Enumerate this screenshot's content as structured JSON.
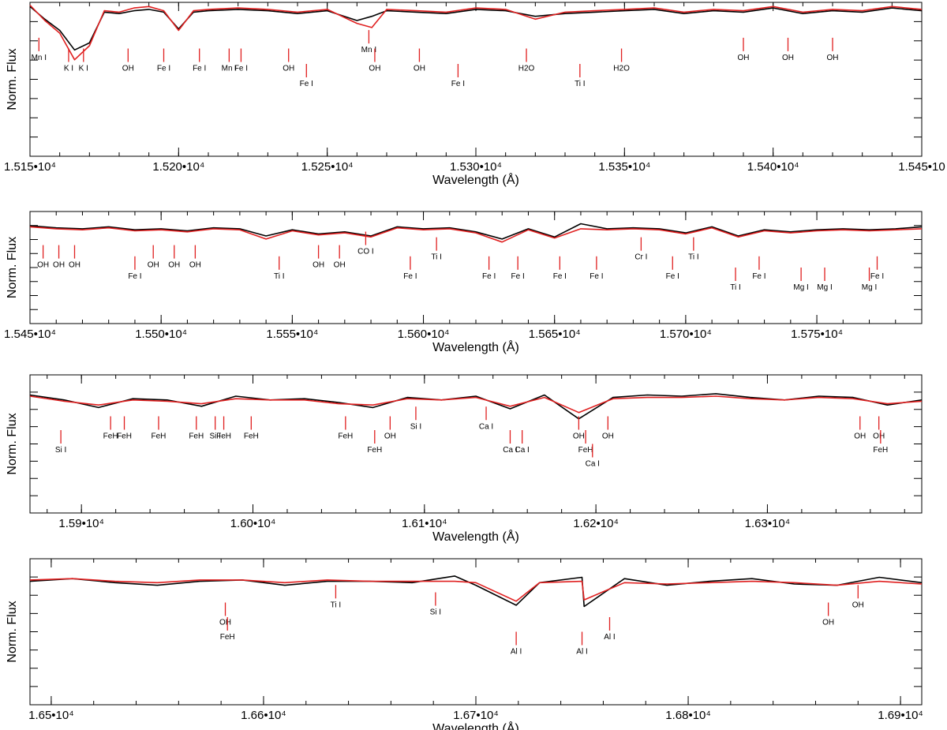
{
  "chart_data": [
    {
      "type": "line",
      "xlabel": "Wavelength (Å)",
      "ylabel": "Norm. Flux",
      "xlim": [
        15150,
        15450
      ],
      "xticks": [
        15150,
        15200,
        15250,
        15300,
        15350,
        15400,
        15450
      ],
      "xtick_labels": [
        "1.515•10⁴",
        "1.520•10⁴",
        "1.525•10⁴",
        "1.530•10⁴",
        "1.535•10⁴",
        "1.540•10⁴",
        "1.545•10"
      ],
      "ylim": [
        0.0,
        1.1
      ],
      "series": [
        {
          "color": "#000000",
          "x": [
            15150,
            15155,
            15160,
            15165,
            15170,
            15175,
            15180,
            15185,
            15190,
            15195,
            15200,
            15205,
            15210,
            15220,
            15230,
            15240,
            15250,
            15260,
            15265,
            15270,
            15280,
            15290,
            15300,
            15310,
            15320,
            15330,
            15340,
            15350,
            15360,
            15370,
            15380,
            15390,
            15400,
            15410,
            15420,
            15430,
            15440,
            15450
          ],
          "y": [
            1.07,
            0.98,
            0.9,
            0.76,
            0.81,
            1.03,
            1.02,
            1.04,
            1.05,
            1.03,
            0.91,
            1.03,
            1.04,
            1.05,
            1.04,
            1.02,
            1.04,
            0.97,
            1.0,
            1.04,
            1.03,
            1.02,
            1.05,
            1.04,
            1.0,
            1.02,
            1.03,
            1.04,
            1.05,
            1.02,
            1.04,
            1.03,
            1.06,
            1.02,
            1.04,
            1.03,
            1.06,
            1.04
          ]
        },
        {
          "color": "#e02020",
          "x": [
            15150,
            15155,
            15160,
            15165,
            15170,
            15175,
            15180,
            15185,
            15190,
            15195,
            15200,
            15205,
            15210,
            15220,
            15230,
            15240,
            15250,
            15260,
            15265,
            15270,
            15280,
            15290,
            15300,
            15310,
            15320,
            15330,
            15340,
            15350,
            15360,
            15370,
            15380,
            15390,
            15400,
            15410,
            15420,
            15430,
            15440,
            15450
          ],
          "y": [
            1.08,
            0.97,
            0.88,
            0.69,
            0.79,
            1.04,
            1.03,
            1.06,
            1.07,
            1.04,
            0.9,
            1.04,
            1.05,
            1.06,
            1.05,
            1.03,
            1.05,
            0.95,
            0.92,
            1.05,
            1.04,
            1.03,
            1.06,
            1.05,
            0.98,
            1.03,
            1.04,
            1.05,
            1.06,
            1.03,
            1.05,
            1.04,
            1.07,
            1.03,
            1.05,
            1.04,
            1.07,
            1.05
          ]
        }
      ],
      "annotations": [
        {
          "x": 15153,
          "label": "Mn I",
          "row": 0
        },
        {
          "x": 15163,
          "label": "K I",
          "row": 1
        },
        {
          "x": 15168,
          "label": "K I",
          "row": 1
        },
        {
          "x": 15183,
          "label": "OH",
          "row": 1
        },
        {
          "x": 15195,
          "label": "Fe I",
          "row": 1
        },
        {
          "x": 15207,
          "label": "Fe I",
          "row": 1
        },
        {
          "x": 15217,
          "label": "Mn I",
          "row": 1
        },
        {
          "x": 15221,
          "label": "Fe I",
          "row": 1
        },
        {
          "x": 15237,
          "label": "OH",
          "row": 1
        },
        {
          "x": 15243,
          "label": "Fe I",
          "row": 2
        },
        {
          "x": 15264,
          "label": "Mn I",
          "row": -1
        },
        {
          "x": 15266,
          "label": "OH",
          "row": 1
        },
        {
          "x": 15281,
          "label": "OH",
          "row": 1
        },
        {
          "x": 15294,
          "label": "Fe I",
          "row": 2
        },
        {
          "x": 15317,
          "label": "H2O",
          "row": 1
        },
        {
          "x": 15335,
          "label": "Ti I",
          "row": 2
        },
        {
          "x": 15349,
          "label": "H2O",
          "row": 1
        },
        {
          "x": 15390,
          "label": "OH",
          "row": 0
        },
        {
          "x": 15405,
          "label": "OH",
          "row": 0
        },
        {
          "x": 15420,
          "label": "OH",
          "row": 0
        }
      ]
    },
    {
      "type": "line",
      "xlabel": "Wavelength (Å)",
      "ylabel": "Norm. Flux",
      "xlim": [
        15450,
        15790
      ],
      "xticks": [
        15450,
        15500,
        15550,
        15600,
        15650,
        15700,
        15750
      ],
      "xtick_labels": [
        "1.545•10⁴",
        "1.550•10⁴",
        "1.555•10⁴",
        "1.560•10⁴",
        "1.565•10⁴",
        "1.570•10⁴",
        "1.575•10⁴"
      ],
      "ylim": [
        0.0,
        1.1
      ],
      "series": [
        {
          "color": "#000000",
          "x": [
            15450,
            15460,
            15470,
            15480,
            15490,
            15500,
            15510,
            15520,
            15530,
            15540,
            15550,
            15560,
            15570,
            15580,
            15590,
            15600,
            15610,
            15620,
            15630,
            15640,
            15650,
            15660,
            15670,
            15680,
            15690,
            15700,
            15710,
            15720,
            15730,
            15740,
            15750,
            15760,
            15770,
            15780,
            15790
          ],
          "y": [
            0.96,
            0.94,
            0.93,
            0.95,
            0.92,
            0.93,
            0.91,
            0.94,
            0.93,
            0.86,
            0.92,
            0.88,
            0.9,
            0.86,
            0.95,
            0.93,
            0.94,
            0.9,
            0.83,
            0.93,
            0.85,
            0.98,
            0.93,
            0.94,
            0.93,
            0.89,
            0.95,
            0.86,
            0.92,
            0.9,
            0.92,
            0.93,
            0.92,
            0.93,
            0.95
          ]
        },
        {
          "color": "#e02020",
          "x": [
            15450,
            15460,
            15470,
            15480,
            15490,
            15500,
            15510,
            15520,
            15530,
            15540,
            15550,
            15560,
            15570,
            15580,
            15590,
            15600,
            15610,
            15620,
            15630,
            15640,
            15650,
            15660,
            15670,
            15680,
            15690,
            15700,
            15710,
            15720,
            15730,
            15740,
            15750,
            15760,
            15770,
            15780,
            15790
          ],
          "y": [
            0.95,
            0.93,
            0.92,
            0.94,
            0.91,
            0.92,
            0.9,
            0.93,
            0.92,
            0.83,
            0.91,
            0.87,
            0.89,
            0.85,
            0.94,
            0.92,
            0.93,
            0.89,
            0.8,
            0.92,
            0.84,
            0.93,
            0.92,
            0.93,
            0.92,
            0.88,
            0.94,
            0.85,
            0.91,
            0.89,
            0.91,
            0.92,
            0.91,
            0.92,
            0.93
          ]
        }
      ],
      "annotations": [
        {
          "x": 15455,
          "label": "OH",
          "row": 1
        },
        {
          "x": 15461,
          "label": "OH",
          "row": 1
        },
        {
          "x": 15467,
          "label": "OH",
          "row": 1
        },
        {
          "x": 15490,
          "label": "Fe I",
          "row": 2
        },
        {
          "x": 15497,
          "label": "OH",
          "row": 1
        },
        {
          "x": 15505,
          "label": "OH",
          "row": 1
        },
        {
          "x": 15513,
          "label": "OH",
          "row": 1
        },
        {
          "x": 15545,
          "label": "Ti I",
          "row": 2
        },
        {
          "x": 15560,
          "label": "OH",
          "row": 1
        },
        {
          "x": 15568,
          "label": "OH",
          "row": 1
        },
        {
          "x": 15578,
          "label": "CO I",
          "row": -1
        },
        {
          "x": 15595,
          "label": "Fe I",
          "row": 2
        },
        {
          "x": 15605,
          "label": "Ti I",
          "row": 0
        },
        {
          "x": 15625,
          "label": "Fe I",
          "row": 2
        },
        {
          "x": 15636,
          "label": "Fe I",
          "row": 2
        },
        {
          "x": 15652,
          "label": "Fe I",
          "row": 2
        },
        {
          "x": 15666,
          "label": "Fe I",
          "row": 2
        },
        {
          "x": 15683,
          "label": "Cr I",
          "row": 0
        },
        {
          "x": 15695,
          "label": "Fe I",
          "row": 2
        },
        {
          "x": 15703,
          "label": "Ti I",
          "row": 0
        },
        {
          "x": 15719,
          "label": "Ti I",
          "row": 3
        },
        {
          "x": 15728,
          "label": "Fe I",
          "row": 2
        },
        {
          "x": 15744,
          "label": "Mg I",
          "row": 3
        },
        {
          "x": 15753,
          "label": "Mg I",
          "row": 3
        },
        {
          "x": 15770,
          "label": "Mg I",
          "row": 3
        },
        {
          "x": 15773,
          "label": "Fe I",
          "row": 2
        }
      ]
    },
    {
      "type": "line",
      "xlabel": "Wavelength (Å)",
      "ylabel": "Norm. Flux",
      "xlim": [
        15870,
        16390
      ],
      "xticks": [
        15900,
        16000,
        16100,
        16200,
        16300
      ],
      "xtick_labels": [
        "1.59•10⁴",
        "1.60•10⁴",
        "1.61•10⁴",
        "1.62•10⁴",
        "1.63•10⁴"
      ],
      "ylim": [
        0.0,
        1.1
      ],
      "series": [
        {
          "color": "#000000",
          "x": [
            15870,
            15890,
            15910,
            15930,
            15950,
            15970,
            15990,
            16010,
            16030,
            16050,
            16070,
            16090,
            16110,
            16130,
            16150,
            16170,
            16190,
            16210,
            16230,
            16250,
            16270,
            16290,
            16310,
            16330,
            16350,
            16370,
            16390
          ],
          "y": [
            0.94,
            0.9,
            0.84,
            0.91,
            0.9,
            0.85,
            0.93,
            0.9,
            0.91,
            0.88,
            0.84,
            0.92,
            0.9,
            0.93,
            0.83,
            0.94,
            0.75,
            0.92,
            0.94,
            0.93,
            0.95,
            0.92,
            0.9,
            0.93,
            0.92,
            0.86,
            0.9
          ]
        },
        {
          "color": "#e02020",
          "x": [
            15870,
            15890,
            15910,
            15930,
            15950,
            15970,
            15990,
            16010,
            16030,
            16050,
            16070,
            16090,
            16110,
            16130,
            16150,
            16170,
            16190,
            16210,
            16230,
            16250,
            16270,
            16290,
            16310,
            16330,
            16350,
            16370,
            16390
          ],
          "y": [
            0.93,
            0.89,
            0.86,
            0.9,
            0.89,
            0.87,
            0.91,
            0.9,
            0.9,
            0.87,
            0.86,
            0.91,
            0.9,
            0.92,
            0.85,
            0.92,
            0.8,
            0.91,
            0.92,
            0.92,
            0.93,
            0.91,
            0.9,
            0.92,
            0.91,
            0.87,
            0.89
          ]
        }
      ],
      "annotations": [
        {
          "x": 15888,
          "label": "Si I",
          "row": 2
        },
        {
          "x": 15917,
          "label": "FeH",
          "row": 1
        },
        {
          "x": 15925,
          "label": "FeH",
          "row": 1
        },
        {
          "x": 15945,
          "label": "FeH",
          "row": 1
        },
        {
          "x": 15967,
          "label": "FeH",
          "row": 1
        },
        {
          "x": 15978,
          "label": "Si I",
          "row": 1
        },
        {
          "x": 15983,
          "label": "FeH",
          "row": 1
        },
        {
          "x": 15999,
          "label": "FeH",
          "row": 1
        },
        {
          "x": 16054,
          "label": "FeH",
          "row": 1
        },
        {
          "x": 16071,
          "label": "FeH",
          "row": 2
        },
        {
          "x": 16080,
          "label": "OH",
          "row": 1
        },
        {
          "x": 16095,
          "label": "Si I",
          "row": 0
        },
        {
          "x": 16136,
          "label": "Ca I",
          "row": 0
        },
        {
          "x": 16150,
          "label": "Ca I",
          "row": 2
        },
        {
          "x": 16157,
          "label": "Ca I",
          "row": 2
        },
        {
          "x": 16190,
          "label": "OH",
          "row": 1
        },
        {
          "x": 16194,
          "label": "FeH",
          "row": 2
        },
        {
          "x": 16198,
          "label": "Ca I",
          "row": 3
        },
        {
          "x": 16207,
          "label": "OH",
          "row": 1
        },
        {
          "x": 16354,
          "label": "OH",
          "row": 1
        },
        {
          "x": 16365,
          "label": "OH",
          "row": 1
        },
        {
          "x": 16366,
          "label": "FeH",
          "row": 2
        }
      ]
    },
    {
      "type": "line",
      "xlabel": "Wavelength (Å)",
      "ylabel": "Norm. Flux",
      "xlim": [
        16490,
        16910
      ],
      "xticks": [
        16500,
        16600,
        16700,
        16800,
        16900
      ],
      "xtick_labels": [
        "1.65•10⁴",
        "1.66•10⁴",
        "1.67•10⁴",
        "1.68•10⁴",
        "1.69•10⁴"
      ],
      "ylim": [
        0.0,
        1.1
      ],
      "series": [
        {
          "color": "#000000",
          "x": [
            16490,
            16510,
            16530,
            16550,
            16570,
            16590,
            16610,
            16630,
            16650,
            16670,
            16690,
            16700,
            16719,
            16730,
            16750,
            16751,
            16770,
            16790,
            16810,
            16830,
            16850,
            16870,
            16890,
            16910
          ],
          "y": [
            0.93,
            0.95,
            0.92,
            0.9,
            0.93,
            0.94,
            0.9,
            0.93,
            0.93,
            0.92,
            0.97,
            0.9,
            0.75,
            0.92,
            0.96,
            0.74,
            0.95,
            0.9,
            0.93,
            0.95,
            0.91,
            0.9,
            0.96,
            0.92
          ]
        },
        {
          "color": "#e02020",
          "x": [
            16490,
            16510,
            16530,
            16550,
            16570,
            16590,
            16610,
            16630,
            16650,
            16670,
            16690,
            16700,
            16719,
            16730,
            16750,
            16751,
            16770,
            16790,
            16810,
            16830,
            16850,
            16870,
            16890,
            16910
          ],
          "y": [
            0.94,
            0.95,
            0.93,
            0.92,
            0.94,
            0.94,
            0.92,
            0.94,
            0.93,
            0.93,
            0.93,
            0.92,
            0.78,
            0.92,
            0.93,
            0.79,
            0.92,
            0.91,
            0.92,
            0.93,
            0.92,
            0.9,
            0.93,
            0.91
          ]
        }
      ],
      "annotations": [
        {
          "x": 16582,
          "label": "OH",
          "row": 1
        },
        {
          "x": 16583,
          "label": "FeH",
          "row": 2
        },
        {
          "x": 16634,
          "label": "Ti I",
          "row": -1
        },
        {
          "x": 16681,
          "label": "Si I",
          "row": 0
        },
        {
          "x": 16719,
          "label": "Al I",
          "row": 3
        },
        {
          "x": 16750,
          "label": "Al I",
          "row": 3
        },
        {
          "x": 16763,
          "label": "Al I",
          "row": 2
        },
        {
          "x": 16866,
          "label": "OH",
          "row": 1
        },
        {
          "x": 16880,
          "label": "OH",
          "row": -1
        }
      ]
    }
  ]
}
